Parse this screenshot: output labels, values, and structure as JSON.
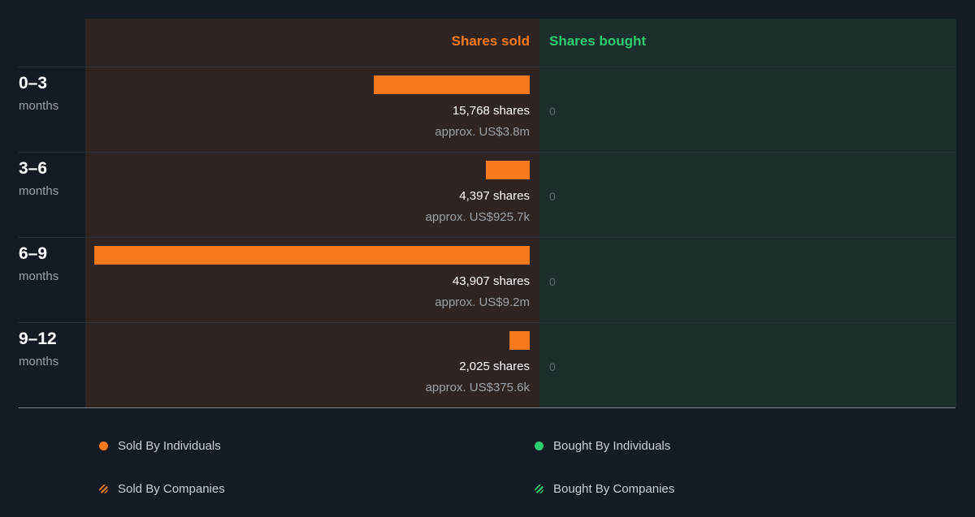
{
  "header": {
    "sold_label": "Shares sold",
    "bought_label": "Shares bought"
  },
  "colors": {
    "sold": "#f7791a",
    "bought": "#2ecc71"
  },
  "chart_data": {
    "type": "bar",
    "orientation": "horizontal",
    "categories": [
      "0–3",
      "3–6",
      "6–9",
      "9–12"
    ],
    "category_unit": "months",
    "series": [
      {
        "name": "Shares sold",
        "values": [
          15768,
          4397,
          43907,
          2025
        ],
        "value_labels": [
          "15,768 shares",
          "4,397 shares",
          "43,907 shares",
          "2,025 shares"
        ],
        "approx_labels": [
          "approx. US$3.8m",
          "approx. US$925.7k",
          "approx. US$9.2m",
          "approx. US$375.6k"
        ]
      },
      {
        "name": "Shares bought",
        "values": [
          0,
          0,
          0,
          0
        ],
        "value_labels": [
          "0",
          "0",
          "0",
          "0"
        ]
      }
    ],
    "legend": [
      {
        "label": "Sold By Individuals",
        "color": "#f7791a",
        "icon": "dot"
      },
      {
        "label": "Bought By Individuals",
        "color": "#2ecc71",
        "icon": "dot"
      },
      {
        "label": "Sold By Companies",
        "color": "#f7791a",
        "icon": "hatched-dot"
      },
      {
        "label": "Bought By Companies",
        "color": "#2ecc71",
        "icon": "hatched-dot"
      }
    ]
  }
}
